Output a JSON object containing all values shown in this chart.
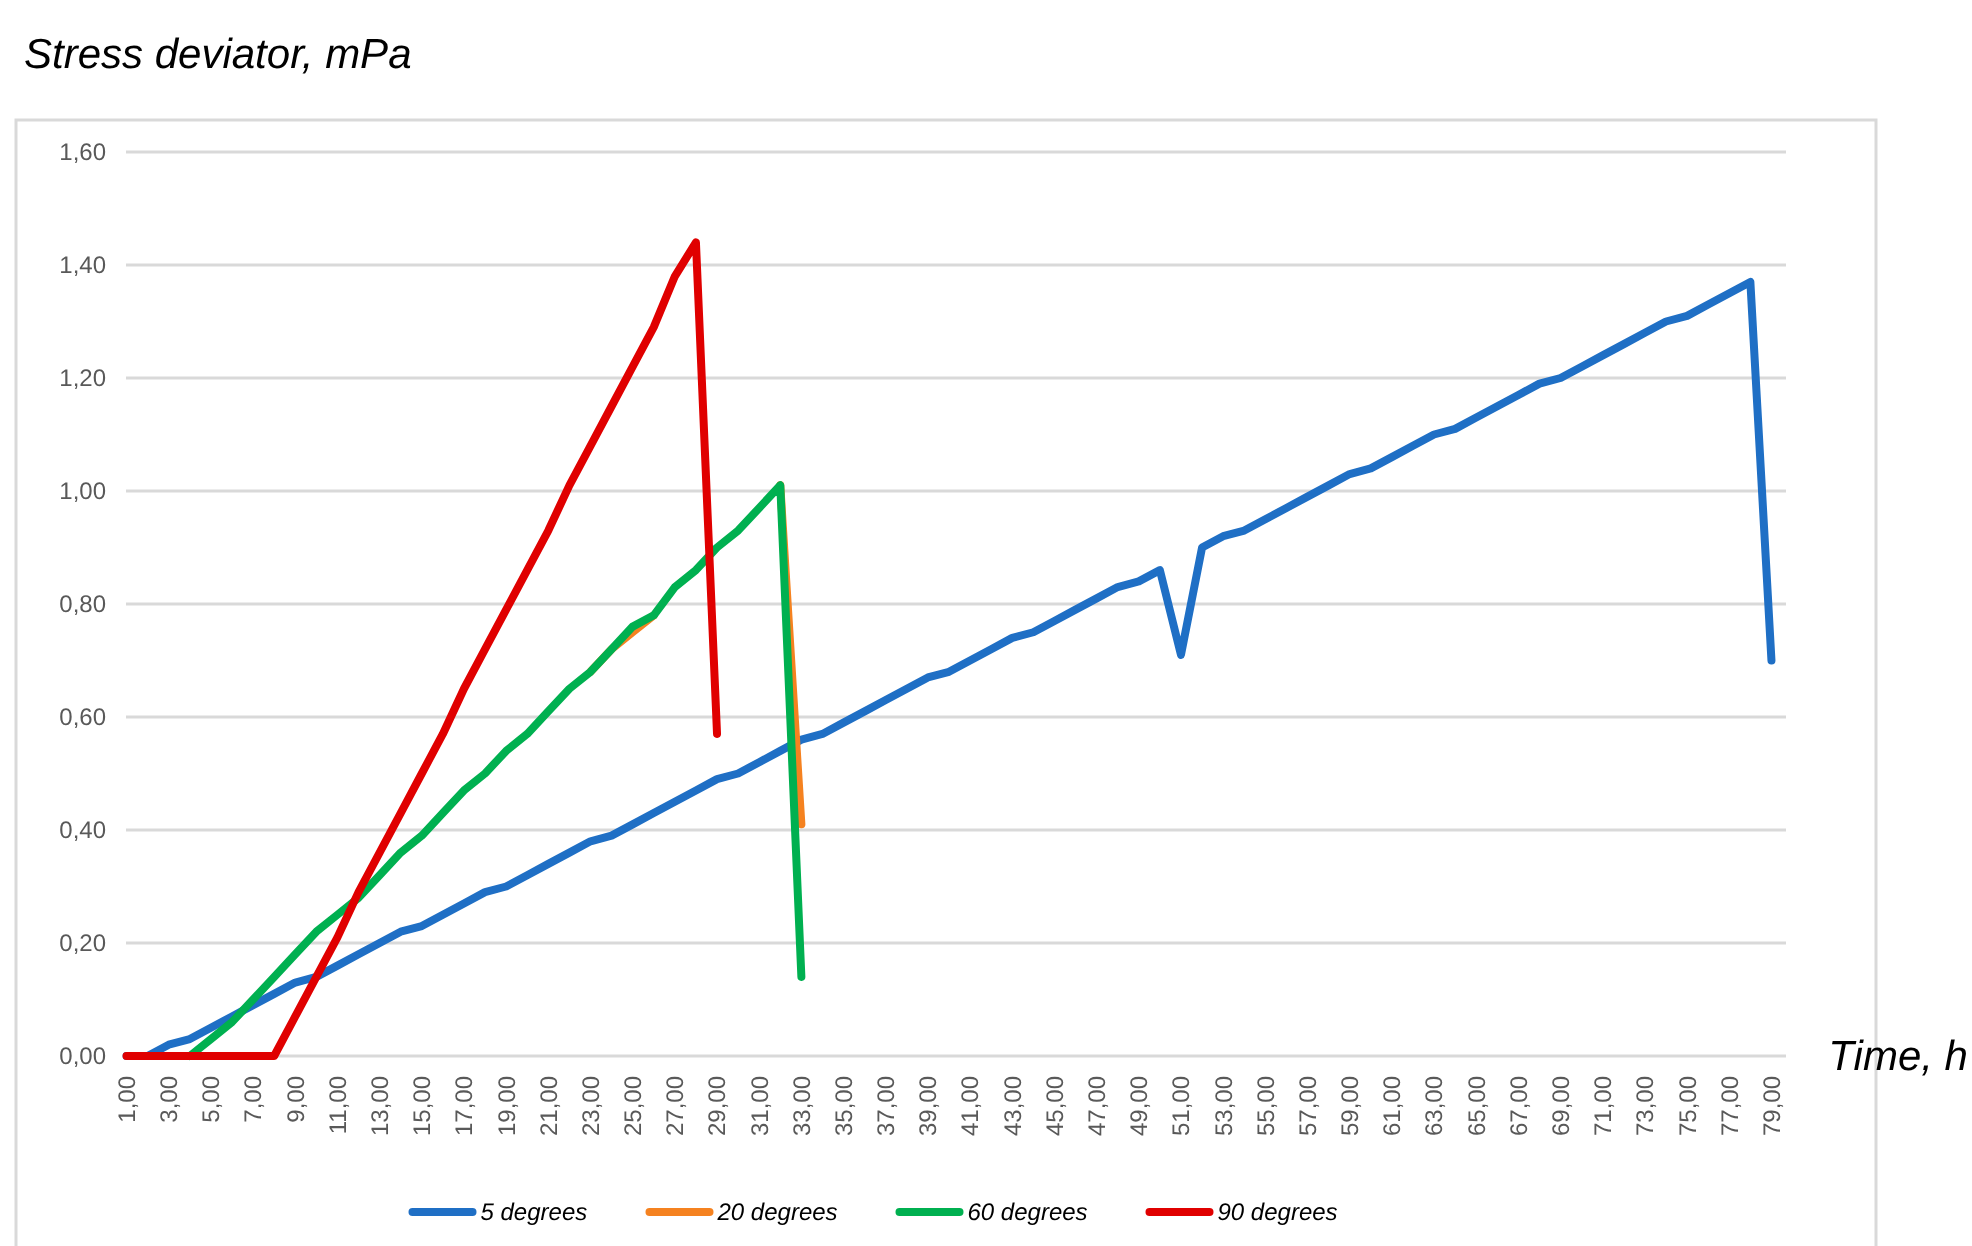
{
  "chart_data": {
    "type": "line",
    "ylabel": "Stress deviator, mPa",
    "xlabel": "Time, h",
    "categories": [
      "1,00",
      null,
      "3,00",
      null,
      "5,00",
      null,
      "7,00",
      null,
      "9,00",
      null,
      "11,00",
      null,
      "13,00",
      null,
      "15,00",
      null,
      "17,00",
      null,
      "19,00",
      null,
      "21,00",
      null,
      "23,00",
      null,
      "25,00",
      null,
      "27,00",
      null,
      "29,00",
      null,
      "31,00",
      null,
      "33,00",
      null,
      "35,00",
      null,
      "37,00",
      null,
      "39,00",
      null,
      "41,00",
      null,
      "43,00",
      null,
      "45,00",
      null,
      "47,00",
      null,
      "49,00",
      null,
      "51,00",
      null,
      "53,00",
      null,
      "55,00",
      null,
      "57,00",
      null,
      "59,00",
      null,
      "61,00",
      null,
      "63,00",
      null,
      "65,00",
      null,
      "67,00",
      null,
      "69,00",
      null,
      "71,00",
      null,
      "73,00",
      null,
      "75,00",
      null,
      "77,00",
      null,
      "79,00"
    ],
    "series": [
      {
        "name": "5 degrees",
        "color": "#1f6fc5",
        "values": [
          0,
          0,
          0.02,
          0.03,
          0.05,
          0.07,
          0.09,
          0.11,
          0.13,
          0.14,
          0.16,
          0.18,
          0.2,
          0.22,
          0.23,
          0.25,
          0.27,
          0.29,
          0.3,
          0.32,
          0.34,
          0.36,
          0.38,
          0.39,
          0.41,
          0.43,
          0.45,
          0.47,
          0.49,
          0.5,
          0.52,
          0.54,
          0.56,
          0.57,
          0.59,
          0.61,
          0.63,
          0.65,
          0.67,
          0.68,
          0.7,
          0.72,
          0.74,
          0.75,
          0.77,
          0.79,
          0.81,
          0.83,
          0.84,
          0.86,
          0.71,
          0.9,
          0.92,
          0.93,
          0.95,
          0.97,
          0.99,
          1.01,
          1.03,
          1.04,
          1.06,
          1.08,
          1.1,
          1.11,
          1.13,
          1.15,
          1.17,
          1.19,
          1.2,
          1.22,
          1.24,
          1.26,
          1.28,
          1.3,
          1.31,
          1.33,
          1.35,
          1.37,
          0.7
        ]
      },
      {
        "name": "20 degrees",
        "color": "#f58220",
        "values": [
          null,
          null,
          null,
          null,
          null,
          null,
          null,
          null,
          null,
          null,
          null,
          null,
          null,
          null,
          null,
          null,
          null,
          null,
          null,
          null,
          null,
          null,
          0.68,
          0.72,
          0.75,
          0.78,
          null,
          null,
          null,
          null,
          null,
          1.01,
          0.41,
          null,
          null,
          null,
          null,
          null,
          null,
          null,
          null,
          null,
          null,
          null,
          null,
          null,
          null,
          null,
          null,
          null,
          null,
          null,
          null,
          null,
          null,
          null,
          null,
          null,
          null,
          null,
          null,
          null,
          null,
          null,
          null,
          null,
          null,
          null,
          null,
          null,
          null,
          null,
          null,
          null,
          null,
          null,
          null,
          null,
          null
        ]
      },
      {
        "name": "60 degrees",
        "color": "#00b050",
        "values": [
          null,
          null,
          null,
          0,
          0.03,
          0.06,
          0.1,
          0.14,
          0.18,
          0.22,
          0.25,
          0.28,
          0.32,
          0.36,
          0.39,
          0.43,
          0.47,
          0.5,
          0.54,
          0.57,
          0.61,
          0.65,
          0.68,
          0.72,
          0.76,
          0.78,
          0.83,
          0.86,
          0.9,
          0.93,
          0.97,
          1.01,
          0.14,
          null,
          null,
          null,
          null,
          null,
          null,
          null,
          null,
          null,
          null,
          null,
          null,
          null,
          null,
          null,
          null,
          null,
          null,
          null,
          null,
          null,
          null,
          null,
          null,
          null,
          null,
          null,
          null,
          null,
          null,
          null,
          null,
          null,
          null,
          null,
          null,
          null,
          null,
          null,
          null,
          null,
          null,
          null,
          null,
          null,
          null
        ]
      },
      {
        "name": "90 degrees",
        "color": "#e00000",
        "values": [
          0,
          0,
          0,
          0,
          0,
          0,
          0,
          0,
          0.07,
          0.14,
          0.21,
          0.29,
          0.36,
          0.43,
          0.5,
          0.57,
          0.65,
          0.72,
          0.79,
          0.86,
          0.93,
          1.01,
          1.08,
          1.15,
          1.22,
          1.29,
          1.38,
          1.44,
          0.57,
          null,
          null,
          null,
          null,
          null,
          null,
          null,
          null,
          null,
          null,
          null,
          null,
          null,
          null,
          null,
          null,
          null,
          null,
          null,
          null,
          null,
          null,
          null,
          null,
          null,
          null,
          null,
          null,
          null,
          null,
          null,
          null,
          null,
          null,
          null,
          null,
          null,
          null,
          null,
          null,
          null,
          null,
          null,
          null,
          null,
          null,
          null,
          null,
          null,
          null
        ]
      }
    ],
    "ylim": [
      0,
      1.6
    ],
    "yticks": [
      {
        "value": 0,
        "label": "0,00"
      },
      {
        "value": 0.2,
        "label": "0,20"
      },
      {
        "value": 0.4,
        "label": "0,40"
      },
      {
        "value": 0.6,
        "label": "0,60"
      },
      {
        "value": 0.8,
        "label": "0,80"
      },
      {
        "value": 1,
        "label": "1,00"
      },
      {
        "value": 1.2,
        "label": "1,20"
      },
      {
        "value": 1.4,
        "label": "1,40"
      },
      {
        "value": 1.6,
        "label": "1,60"
      }
    ],
    "grid": "y",
    "legend": "bottom",
    "marker": "none",
    "line_style": "solid"
  }
}
